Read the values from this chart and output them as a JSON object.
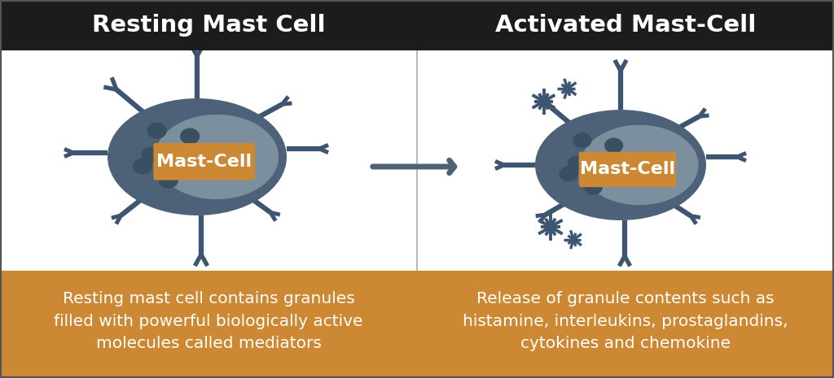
{
  "title_left": "Resting Mast Cell",
  "title_right": "Activated Mast-Cell",
  "label_left": "Mast-Cell",
  "label_right": "Mast-Cell",
  "caption_left": "Resting mast cell contains granules\nfilled with powerful biologically active\nmolecules called mediators",
  "caption_right": "Release of granule contents such as\nhistamine, interleukins, prostaglandins,\ncytokines and chemokine",
  "bg_color": "#ffffff",
  "header_bg": "#1c1c1c",
  "header_fg": "#ffffff",
  "caption_bg": "#cc8833",
  "caption_fg": "#ffffff",
  "cell_outer": "#4d6278",
  "cell_inner": "#8d9fad",
  "granule_color": "#3a4f62",
  "spike_color": "#3d5570",
  "label_bg": "#cc8833",
  "label_fg": "#ffffff",
  "border_color": "#555555",
  "arrow_color": "#4d6278",
  "divider_color": "#aaaaaa"
}
